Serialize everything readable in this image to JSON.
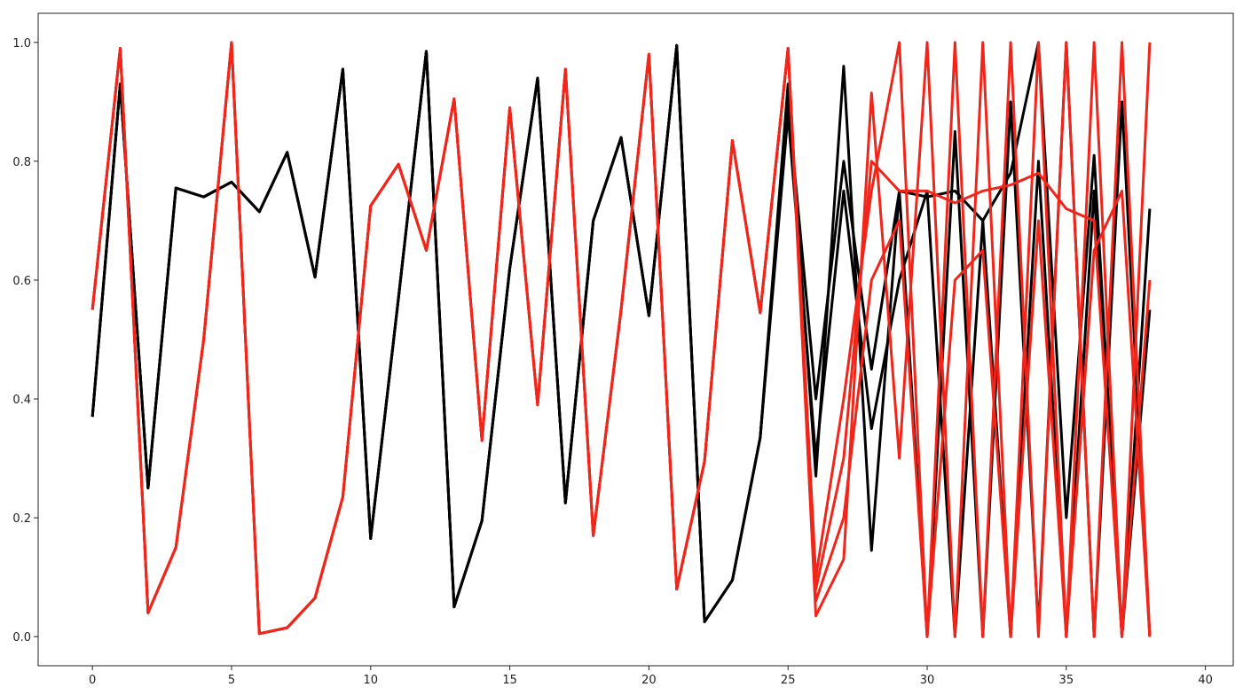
{
  "chart_data": {
    "type": "line",
    "x": [
      0,
      1,
      2,
      3,
      4,
      5,
      6,
      7,
      8,
      9,
      10,
      11,
      12,
      13,
      14,
      15,
      16,
      17,
      18,
      19,
      20,
      21,
      22,
      23,
      24,
      25,
      26,
      27,
      28,
      29,
      30,
      31,
      32,
      33,
      34,
      35,
      36,
      37,
      38
    ],
    "series": [
      {
        "color": "#000000",
        "values": [
          0.37,
          0.93,
          0.25,
          0.755,
          0.74,
          0.765,
          0.715,
          0.815,
          0.605,
          0.955,
          0.165,
          0.57,
          0.985,
          0.05,
          0.195,
          0.62,
          0.94,
          0.225,
          0.7,
          0.84,
          0.54,
          0.995,
          0.025,
          0.095,
          0.335,
          0.93,
          0.27,
          0.96,
          0.145,
          0.75,
          0.74,
          0.75,
          0.7,
          0.78,
          1.0,
          0.2,
          0.81,
          0.0,
          0.72
        ]
      },
      {
        "color": "#000000",
        "values": [
          0.37,
          0.93,
          0.25,
          0.755,
          0.74,
          0.765,
          0.715,
          0.815,
          0.605,
          0.955,
          0.165,
          0.57,
          0.985,
          0.05,
          0.195,
          0.62,
          0.94,
          0.225,
          0.7,
          0.84,
          0.54,
          0.995,
          0.025,
          0.095,
          0.335,
          0.9,
          0.4,
          0.8,
          0.45,
          0.75,
          0.0,
          0.85,
          0.0,
          0.9,
          0.01,
          1.0,
          0.0,
          0.9,
          0.0
        ]
      },
      {
        "color": "#000000",
        "values": [
          0.37,
          0.93,
          0.25,
          0.755,
          0.74,
          0.765,
          0.715,
          0.815,
          0.605,
          0.955,
          0.165,
          0.57,
          0.985,
          0.05,
          0.195,
          0.62,
          0.94,
          0.225,
          0.7,
          0.84,
          0.54,
          0.995,
          0.025,
          0.095,
          0.335,
          0.88,
          0.3,
          0.75,
          0.35,
          0.6,
          0.75,
          0.0,
          0.7,
          0.0,
          0.8,
          0.0,
          0.75,
          0.0,
          0.55
        ]
      },
      {
        "color": "#f0261b",
        "values": [
          0.55,
          0.99,
          0.04,
          0.15,
          0.5,
          1.0,
          0.005,
          0.015,
          0.065,
          0.235,
          0.725,
          0.795,
          0.65,
          0.905,
          0.33,
          0.89,
          0.39,
          0.955,
          0.17,
          0.55,
          0.98,
          0.08,
          0.295,
          0.835,
          0.545,
          0.99,
          0.035,
          0.13,
          0.915,
          0.3,
          1.0,
          0.0,
          1.0,
          0.0,
          1.0,
          0.0,
          1.0,
          0.0,
          1.0
        ]
      },
      {
        "color": "#f0261b",
        "values": [
          0.55,
          0.99,
          0.04,
          0.15,
          0.5,
          1.0,
          0.005,
          0.015,
          0.065,
          0.235,
          0.725,
          0.795,
          0.65,
          0.905,
          0.33,
          0.89,
          0.39,
          0.955,
          0.17,
          0.55,
          0.98,
          0.08,
          0.295,
          0.835,
          0.545,
          0.99,
          0.1,
          0.4,
          0.75,
          1.0,
          0.0,
          1.0,
          0.0,
          1.0,
          0.0,
          1.0,
          0.0,
          1.0,
          0.0
        ]
      },
      {
        "color": "#f0261b",
        "values": [
          0.55,
          0.99,
          0.04,
          0.15,
          0.5,
          1.0,
          0.005,
          0.015,
          0.065,
          0.235,
          0.725,
          0.795,
          0.65,
          0.905,
          0.33,
          0.89,
          0.39,
          0.955,
          0.17,
          0.55,
          0.98,
          0.08,
          0.295,
          0.835,
          0.545,
          0.99,
          0.08,
          0.3,
          0.8,
          0.75,
          0.75,
          0.73,
          0.75,
          0.76,
          0.78,
          0.72,
          0.7,
          0.0,
          0.6
        ]
      },
      {
        "color": "#f0261b",
        "values": [
          0.55,
          0.99,
          0.04,
          0.15,
          0.5,
          1.0,
          0.005,
          0.015,
          0.065,
          0.235,
          0.725,
          0.795,
          0.65,
          0.905,
          0.33,
          0.89,
          0.39,
          0.955,
          0.17,
          0.55,
          0.98,
          0.08,
          0.295,
          0.835,
          0.545,
          0.99,
          0.06,
          0.2,
          0.6,
          0.7,
          0.0,
          0.6,
          0.65,
          0.0,
          0.7,
          0.0,
          0.65,
          0.75,
          0.0
        ]
      }
    ],
    "xlim": [
      -1.95,
      41.0
    ],
    "ylim": [
      -0.049,
      1.049
    ],
    "xticks": [
      0,
      5,
      10,
      15,
      20,
      25,
      30,
      35,
      40
    ],
    "yticks": [
      {
        "value": 0,
        "label": "0.0"
      },
      {
        "value": 0.2,
        "label": "0.2"
      },
      {
        "value": 0.4,
        "label": "0.4"
      },
      {
        "value": 0.6,
        "label": "0.6"
      },
      {
        "value": 0.8,
        "label": "0.8"
      },
      {
        "value": 1,
        "label": "1.0"
      }
    ]
  }
}
